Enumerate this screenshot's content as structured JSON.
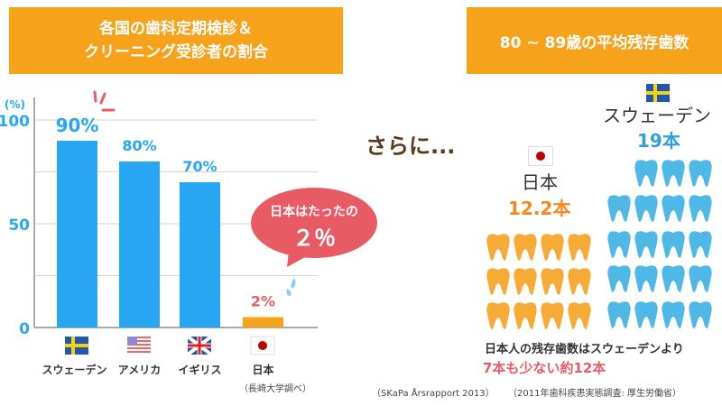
{
  "left_banner": {
    "line1": "各国の歯科定期検診＆",
    "line2": "クリーニング受診者の割合"
  },
  "right_banner": {
    "title": "80 ~ 89歳の平均残存歯数"
  },
  "chart_data": {
    "type": "bar",
    "ylabel": "(%)",
    "ylim": [
      0,
      100
    ],
    "yticks": [
      0,
      50,
      100
    ],
    "grid": true,
    "categories": [
      "スウェーデン",
      "アメリカ",
      "イギリス",
      "日本"
    ],
    "values": [
      90,
      80,
      70,
      2
    ],
    "data_labels": [
      "90%",
      "80%",
      "70%",
      "2%"
    ],
    "bar_colors": [
      "#27a7f3",
      "#27a7f3",
      "#27a7f3",
      "#f7a21b"
    ],
    "source": "（長崎大学調べ）"
  },
  "bubble": {
    "line1": "日本はたったの",
    "line2": "２％"
  },
  "middle": {
    "text": "さらに..."
  },
  "teeth": {
    "japan": {
      "label": "日本",
      "count_label": "12.2本",
      "count": 12,
      "color": "#f5ab35"
    },
    "sweden": {
      "label": "スウェーデン",
      "count_label": "19本",
      "count": 19,
      "color": "#4fb8e6"
    }
  },
  "summary": {
    "line1": "日本人の残存歯数はスウェーデンより",
    "line2": "7本も少ない約12本"
  },
  "sources": {
    "left": "（SKaPa Årsrapport 2013）",
    "right": "（2011年歯科疾患実態調査: 厚生労働省）"
  }
}
